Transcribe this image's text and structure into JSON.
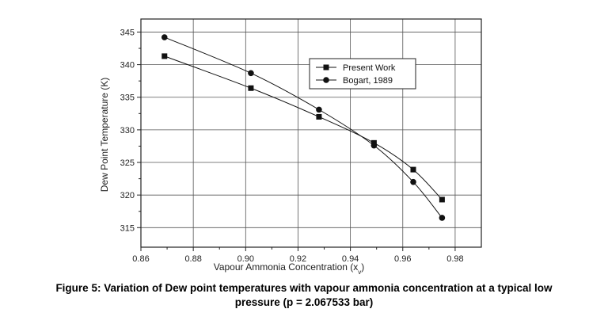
{
  "chart_data": {
    "type": "line",
    "xlabel": "Vapour Ammonia Concentration (x",
    "xlabel_sub": "v",
    "xlabel_end": ")",
    "ylabel": "Dew Point Temperature (K)",
    "xlim": [
      0.86,
      0.99
    ],
    "ylim": [
      312,
      347
    ],
    "x_ticks": [
      0.86,
      0.88,
      0.9,
      0.92,
      0.94,
      0.96,
      0.98
    ],
    "x_tick_labels": [
      "0.86",
      "0.88",
      "0.90",
      "0.92",
      "0.94",
      "0.96",
      "0.98"
    ],
    "y_ticks": [
      315,
      320,
      325,
      330,
      335,
      340,
      345
    ],
    "y_tick_labels": [
      "315",
      "320",
      "325",
      "330",
      "335",
      "340",
      "345"
    ],
    "grid": true,
    "legend_position": "top-right",
    "series": [
      {
        "name": "Present Work",
        "marker": "square",
        "points": [
          [
            0.869,
            341.3
          ],
          [
            0.902,
            336.4
          ],
          [
            0.928,
            332.0
          ],
          [
            0.949,
            328.0
          ],
          [
            0.964,
            323.9
          ],
          [
            0.975,
            319.3
          ]
        ]
      },
      {
        "name": "Bogart, 1989",
        "marker": "circle",
        "points": [
          [
            0.869,
            344.2
          ],
          [
            0.902,
            338.7
          ],
          [
            0.928,
            333.1
          ],
          [
            0.949,
            327.6
          ],
          [
            0.964,
            322.0
          ],
          [
            0.975,
            316.5
          ]
        ]
      }
    ]
  },
  "caption": {
    "line1": "Figure 5: Variation of Dew point temperatures with vapour ammonia concentration at a typical low",
    "line2": "pressure (p = 2.067533 bar)"
  },
  "colors": {
    "series": "#111111",
    "grid": "#555555",
    "axis": "#222222"
  }
}
